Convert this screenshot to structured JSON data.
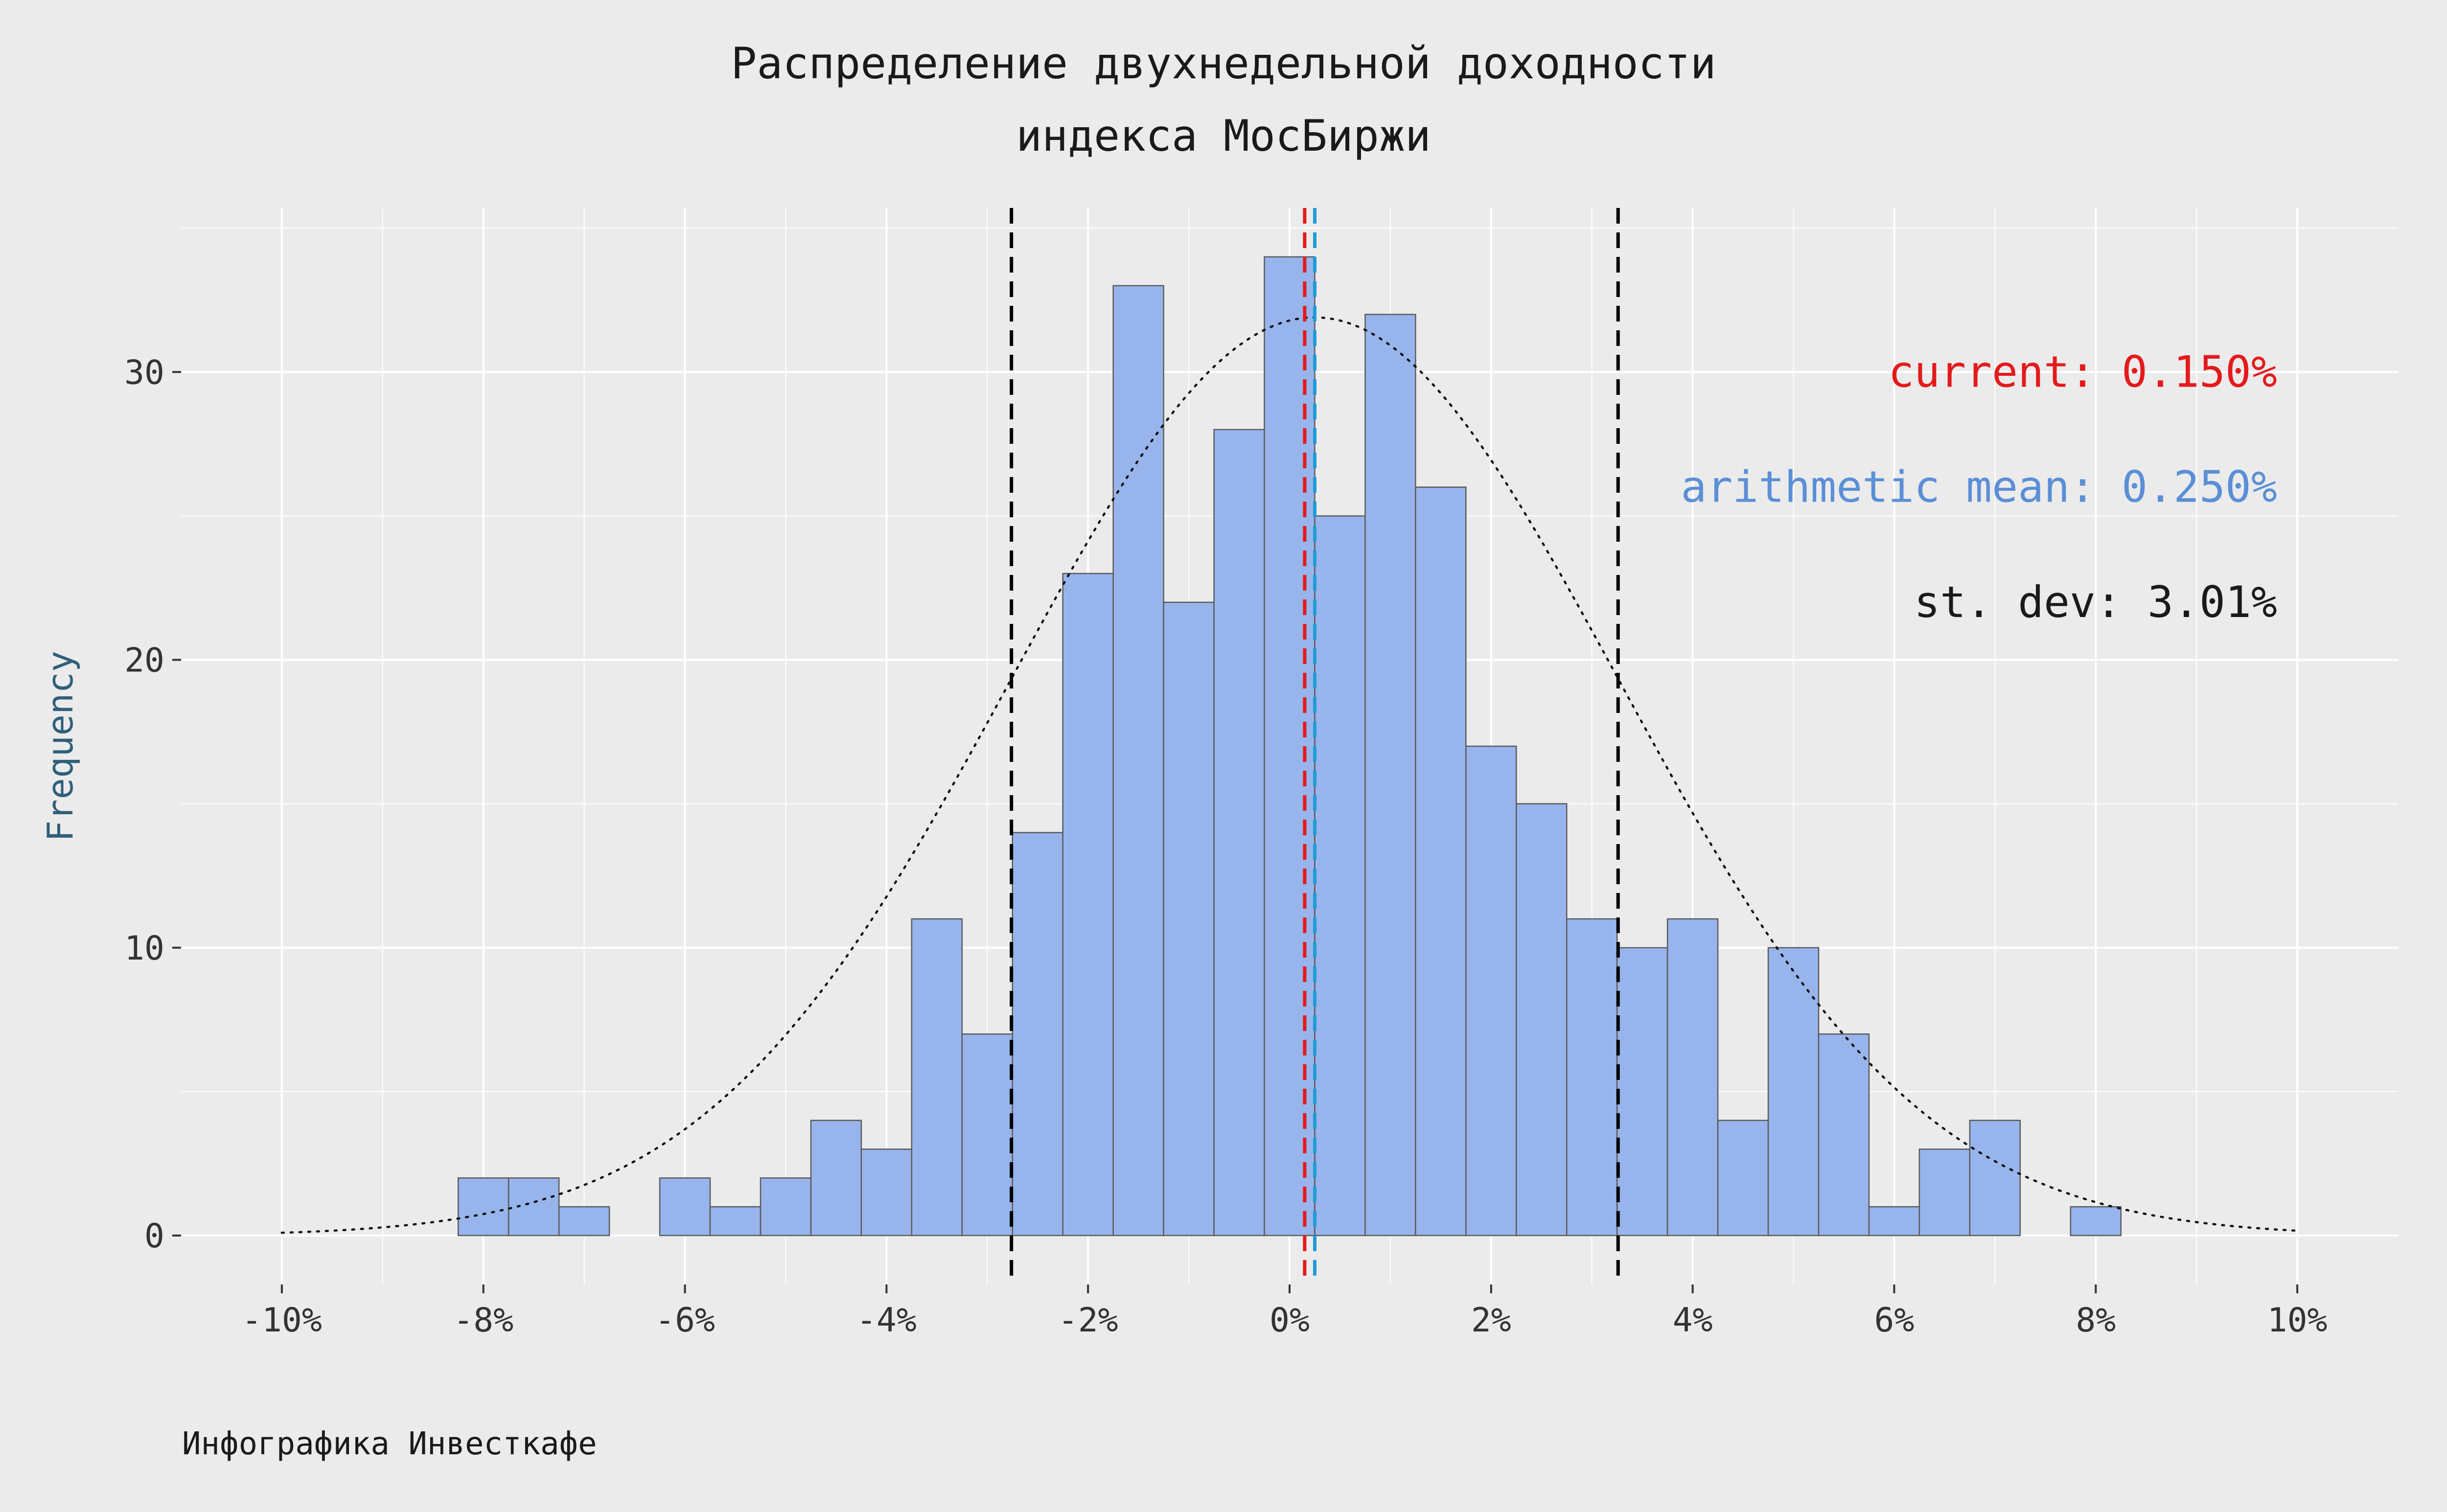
{
  "chart_data": {
    "type": "bar",
    "title_lines": [
      "Распределение двухнедельной доходности",
      "индекса МосБиржи"
    ],
    "xlabel": "",
    "ylabel": "Frequency",
    "caption": "Инфографика Инвесткафе",
    "x_tick_values": [
      -10,
      -8,
      -6,
      -4,
      -2,
      0,
      2,
      4,
      6,
      8,
      10
    ],
    "x_tick_labels": [
      "-10%",
      "-8%",
      "-6%",
      "-4%",
      "-2%",
      "0%",
      "2%",
      "4%",
      "6%",
      "8%",
      "10%"
    ],
    "y_tick_values": [
      0,
      10,
      20,
      30
    ],
    "y_tick_labels": [
      "0",
      "10",
      "20",
      "30"
    ],
    "xlim": [
      -11,
      11
    ],
    "ylim": [
      -1.7,
      35.7
    ],
    "grid": true,
    "bin_width_percent": 0.5,
    "bins_start": [
      -8.25,
      -7.75,
      -7.25,
      -6.75,
      -6.25,
      -5.75,
      -5.25,
      -4.75,
      -4.25,
      -3.75,
      -3.25,
      -2.75,
      -2.25,
      -1.75,
      -1.25,
      -0.75,
      -0.25,
      0.25,
      0.75,
      1.25,
      1.75,
      2.25,
      2.75,
      3.25,
      3.75,
      4.25,
      4.75,
      5.25,
      5.75,
      6.25,
      6.75,
      7.25,
      7.75
    ],
    "counts": [
      2,
      2,
      1,
      0,
      2,
      1,
      2,
      4,
      3,
      11,
      7,
      14,
      23,
      33,
      22,
      28,
      34,
      25,
      32,
      26,
      17,
      15,
      11,
      10,
      11,
      4,
      10,
      7,
      1,
      3,
      4,
      0,
      1
    ],
    "normal_curve": {
      "mean": 0.25,
      "sd": 3.01,
      "peak": 31.9,
      "x_range": [
        -10,
        10
      ]
    },
    "vlines": [
      {
        "x": -2.76,
        "color": "#000000",
        "style": "dashed"
      },
      {
        "x": 0.15,
        "color": "#e41a1c",
        "style": "dashed"
      },
      {
        "x": 0.25,
        "color": "#1f9bd8",
        "style": "dashed"
      },
      {
        "x": 3.26,
        "color": "#000000",
        "style": "dashed"
      }
    ],
    "annotations": [
      {
        "text": "current: 0.150%",
        "color": "#e41a1c"
      },
      {
        "text": "arithmetic mean: 0.250%",
        "color": "#5b8fd6"
      },
      {
        "text": "st. dev: 3.01%",
        "color": "#1a1a1a"
      }
    ],
    "colors": {
      "background": "#ebebeb",
      "grid": "#ffffff",
      "bar_fill": "#97b5ec",
      "bar_stroke": "#5a5a5a",
      "curve": "#111111"
    }
  }
}
